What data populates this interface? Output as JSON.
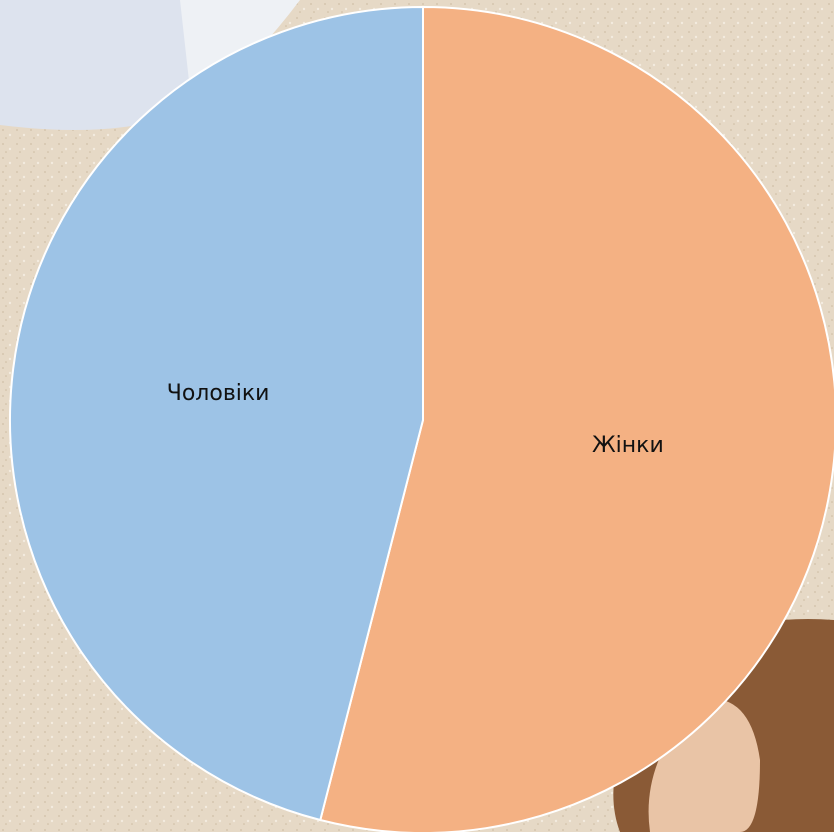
{
  "chart_data": {
    "type": "pie",
    "categories": [
      "Жінки",
      "Чоловіки"
    ],
    "values": [
      54,
      46
    ],
    "colors": [
      "#f4b183",
      "#9dc3e6"
    ]
  }
}
